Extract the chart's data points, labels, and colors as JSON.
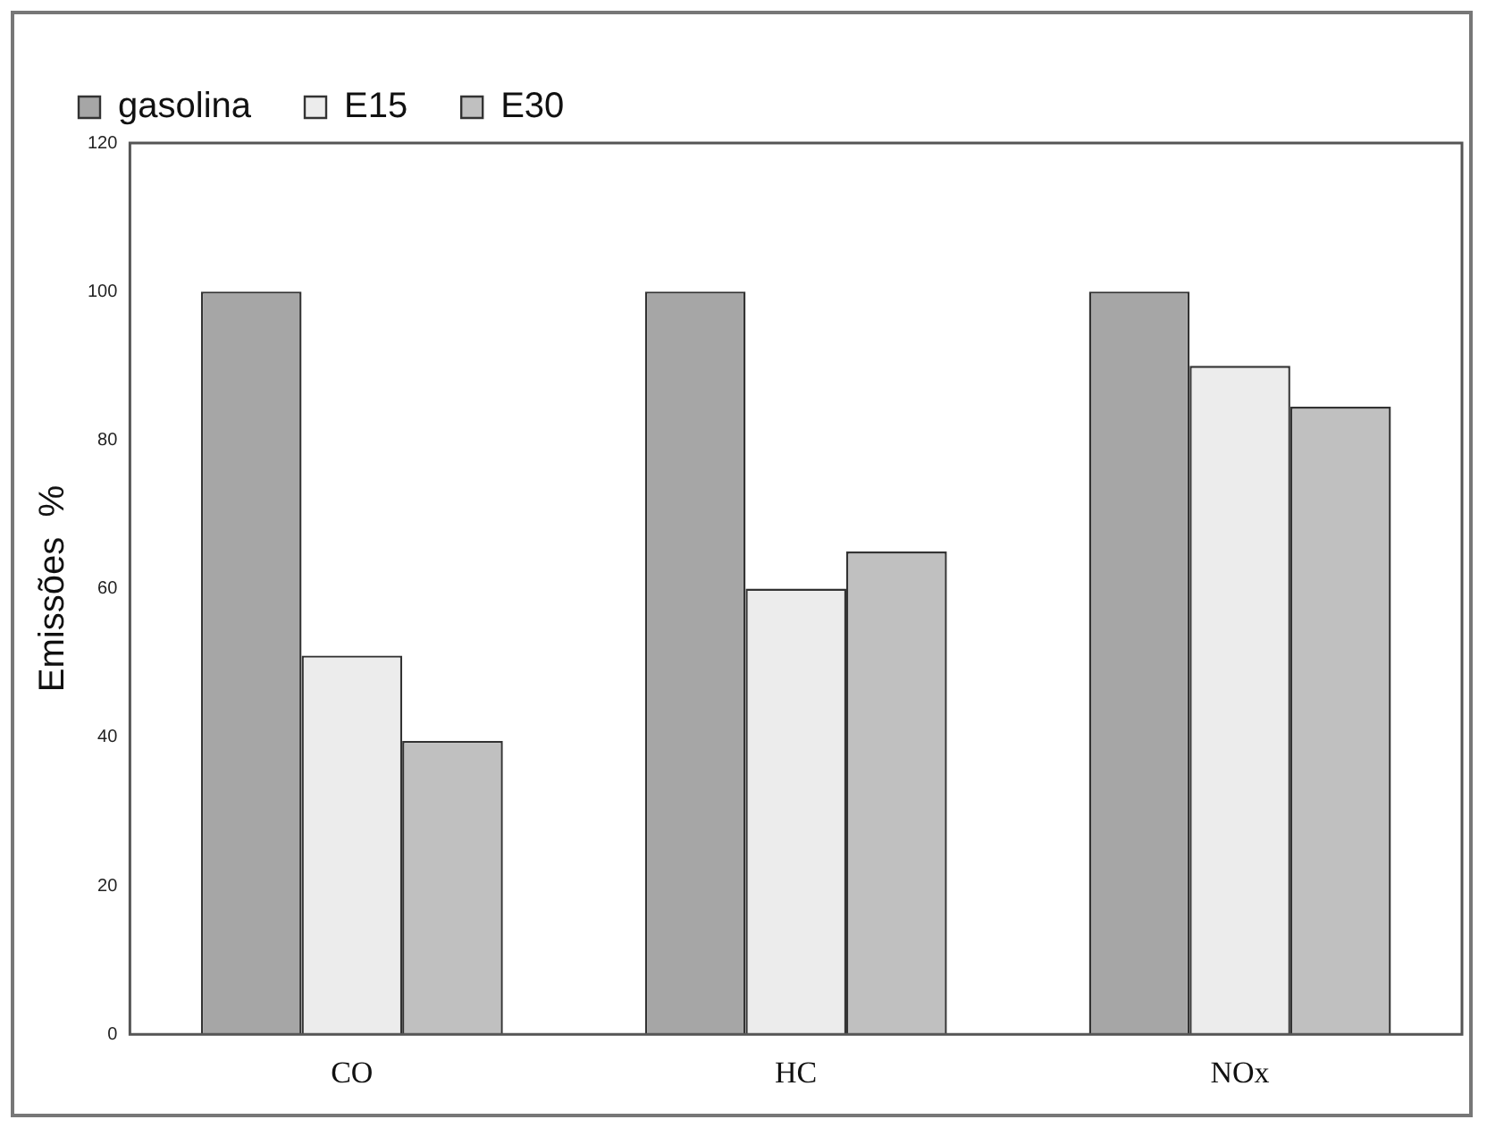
{
  "chart_data": {
    "type": "bar",
    "ylabel": "Emissões  %",
    "categories": [
      "CO",
      "HC",
      "NOx"
    ],
    "series": [
      {
        "name": "gasolina",
        "color": "#a6a6a6",
        "values": [
          100,
          100,
          100
        ]
      },
      {
        "name": "E15",
        "color": "#ececec",
        "values": [
          51,
          60,
          90
        ]
      },
      {
        "name": "E30",
        "color": "#c0c0c0",
        "values": [
          39.5,
          65,
          84.5
        ]
      }
    ],
    "ylim": [
      0,
      120
    ],
    "yticks": [
      0,
      20,
      40,
      60,
      80,
      100,
      120
    ],
    "grid": false,
    "legend": "top left"
  }
}
